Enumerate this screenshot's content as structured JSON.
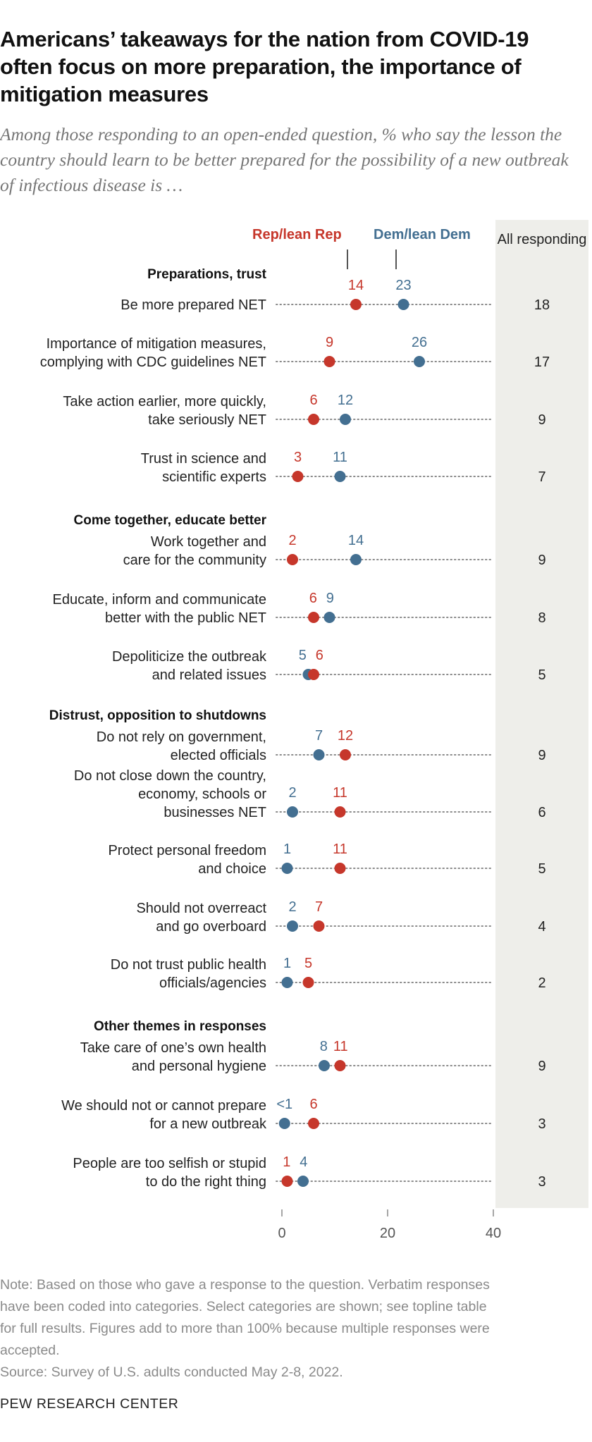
{
  "title": "Americans’ takeaways for the nation from COVID-19 often focus on more preparation, the importance of mitigation measures",
  "subtitle": "Among those responding to an open-ended question, % who say the lesson the country should learn to be better prepared for the possibility of a new outbreak of infectious disease is …",
  "colors": {
    "rep": "#c6372b",
    "dem": "#436f91",
    "all_bg": "#eeeeea",
    "dots": "#8a8a8a"
  },
  "chart_data": {
    "type": "scatter",
    "xlim": [
      0,
      40
    ],
    "xticks": [
      "0",
      "20",
      "40"
    ],
    "all_header": "All responding",
    "series": [
      {
        "name": "Rep/lean Rep",
        "key": "rep"
      },
      {
        "name": "Dem/lean Dem",
        "key": "dem"
      }
    ],
    "sections": [
      {
        "title": "Preparations, trust",
        "rows": [
          {
            "lines": [
              "Be more prepared NET"
            ],
            "rep": 14,
            "dem": 23,
            "all": "18",
            "rep_label": "14",
            "dem_label": "23"
          },
          {
            "lines": [
              "Importance of mitigation measures,",
              "complying with CDC guidelines NET"
            ],
            "rep": 9,
            "dem": 26,
            "all": "17",
            "rep_label": "9",
            "dem_label": "26"
          },
          {
            "lines": [
              "Take action earlier, more quickly,",
              "take seriously NET"
            ],
            "rep": 6,
            "dem": 12,
            "all": "9",
            "rep_label": "6",
            "dem_label": "12"
          },
          {
            "lines": [
              "Trust in science and",
              "scientific experts"
            ],
            "rep": 3,
            "dem": 11,
            "all": "7",
            "rep_label": "3",
            "dem_label": "11"
          }
        ]
      },
      {
        "title": "Come together, educate better",
        "rows": [
          {
            "lines": [
              "Work together and",
              "care for the community"
            ],
            "rep": 2,
            "dem": 14,
            "all": "9",
            "rep_label": "2",
            "dem_label": "14"
          },
          {
            "lines": [
              "Educate, inform and communicate",
              "better with the public NET"
            ],
            "rep": 6,
            "dem": 9,
            "all": "8",
            "rep_label": "6",
            "dem_label": "9"
          },
          {
            "lines": [
              "Depoliticize the outbreak",
              "and related issues"
            ],
            "rep": 6,
            "dem": 5,
            "all": "5",
            "rep_label": "6",
            "dem_label": "5"
          }
        ]
      },
      {
        "title": "Distrust, opposition to shutdowns",
        "rows": [
          {
            "lines": [
              "Do not rely on government,",
              "elected officials"
            ],
            "rep": 12,
            "dem": 7,
            "all": "9",
            "rep_label": "12",
            "dem_label": "7"
          },
          {
            "lines": [
              "Do not close down the country,",
              "economy, schools or",
              "businesses NET"
            ],
            "rep": 11,
            "dem": 2,
            "all": "6",
            "rep_label": "11",
            "dem_label": "2"
          },
          {
            "lines": [
              "Protect personal freedom",
              "and choice"
            ],
            "rep": 11,
            "dem": 1,
            "all": "5",
            "rep_label": "11",
            "dem_label": "1"
          },
          {
            "lines": [
              "Should not overreact",
              "and go overboard"
            ],
            "rep": 7,
            "dem": 2,
            "all": "4",
            "rep_label": "7",
            "dem_label": "2"
          },
          {
            "lines": [
              "Do not trust public health",
              "officials/agencies"
            ],
            "rep": 5,
            "dem": 1,
            "all": "2",
            "rep_label": "5",
            "dem_label": "1"
          }
        ]
      },
      {
        "title": "Other themes in responses",
        "rows": [
          {
            "lines": [
              "Take care of one’s own health",
              "and personal hygiene"
            ],
            "rep": 11,
            "dem": 8,
            "all": "9",
            "rep_label": "11",
            "dem_label": "8"
          },
          {
            "lines": [
              "We should not or cannot prepare",
              "for a new outbreak"
            ],
            "rep": 6,
            "dem": 0.5,
            "all": "3",
            "rep_label": "6",
            "dem_label": "<1"
          },
          {
            "lines": [
              "People are too selfish or stupid",
              "to do the right thing"
            ],
            "rep": 1,
            "dem": 4,
            "all": "3",
            "rep_label": "1",
            "dem_label": "4"
          }
        ]
      }
    ]
  },
  "note": "Note: Based on those who gave a response to the question. Verbatim responses\nhave been coded into categories. Select categories are shown; see topline table\nfor full results. Figures add to more than 100% because multiple responses were\naccepted.",
  "source": "Source: Survey of U.S. adults conducted May 2-8, 2022.",
  "footer": "PEW RESEARCH CENTER"
}
